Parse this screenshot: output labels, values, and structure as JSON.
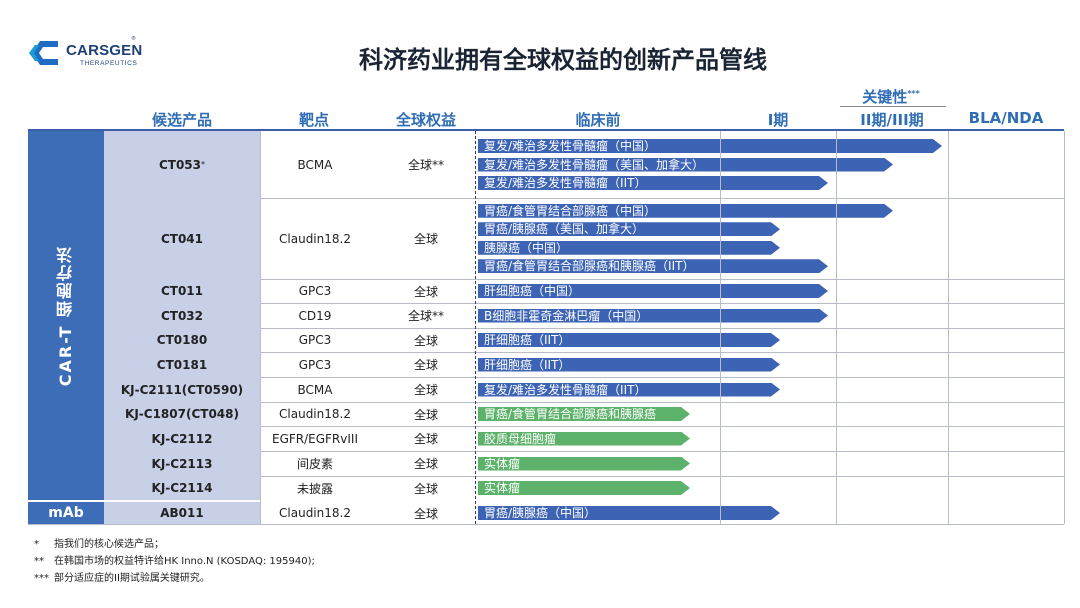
{
  "logo": {
    "name": "CARSGEN",
    "sub": "THERAPEUTICS",
    "reg": "®"
  },
  "title": "科济药业拥有全球权益的创新产品管线",
  "header": {
    "product": "候选产品",
    "target": "靶点",
    "rights": "全球权益",
    "preclinical": "临床前",
    "phase1": "I期",
    "pivotal": "关键性",
    "pivotal_mark": "***",
    "phase23": "II期/III期",
    "bla": "BLA/NDA"
  },
  "groups": {
    "cart": "CAR-T 细胞疗法",
    "mab": "mAb"
  },
  "rows": [
    {
      "product": "CT053",
      "mark": "*",
      "target": "BCMA",
      "rights": "全球**",
      "bars": [
        {
          "label": "复发/难治多发性骨髓瘤（中国）",
          "color": "blue",
          "stage": "phase23-end"
        },
        {
          "label": "复发/难治多发性骨髓瘤（美国、加拿大）",
          "color": "blue",
          "stage": "phase23-mid"
        },
        {
          "label": "复发/难治多发性骨髓瘤（IIT）",
          "color": "blue",
          "stage": "phase1-end"
        }
      ]
    },
    {
      "product": "CT041",
      "mark": "",
      "target": "Claudin18.2",
      "rights": "全球",
      "bars": [
        {
          "label": "胃癌/食管胃结合部腺癌（中国）",
          "color": "blue",
          "stage": "phase23-mid"
        },
        {
          "label": "胃癌/胰腺癌（美国、加拿大）",
          "color": "blue",
          "stage": "phase1-mid"
        },
        {
          "label": "胰腺癌（中国）",
          "color": "blue",
          "stage": "phase1-mid"
        },
        {
          "label": "胃癌/食管胃结合部腺癌和胰腺癌（IIT）",
          "color": "blue",
          "stage": "phase1-end"
        }
      ]
    },
    {
      "product": "CT011",
      "mark": "",
      "target": "GPC3",
      "rights": "全球",
      "bars": [
        {
          "label": "肝细胞癌（中国）",
          "color": "blue",
          "stage": "phase1-end"
        }
      ]
    },
    {
      "product": "CT032",
      "mark": "",
      "target": "CD19",
      "rights": "全球**",
      "bars": [
        {
          "label": "B细胞非霍奇金淋巴瘤（中国）",
          "color": "blue",
          "stage": "phase1-end"
        }
      ]
    },
    {
      "product": "CT0180",
      "mark": "",
      "target": "GPC3",
      "rights": "全球",
      "bars": [
        {
          "label": "肝细胞癌（IIT）",
          "color": "blue",
          "stage": "phase1-mid"
        }
      ]
    },
    {
      "product": "CT0181",
      "mark": "",
      "target": "GPC3",
      "rights": "全球",
      "bars": [
        {
          "label": "肝细胞癌（IIT）",
          "color": "blue",
          "stage": "phase1-mid"
        }
      ]
    },
    {
      "product": "KJ-C2111(CT0590)",
      "mark": "",
      "target": "BCMA",
      "rights": "全球",
      "bars": [
        {
          "label": "复发/难治多发性骨髓瘤（IIT）",
          "color": "blue",
          "stage": "phase1-mid"
        }
      ]
    },
    {
      "product": "KJ-C1807(CT048)",
      "mark": "",
      "target": "Claudin18.2",
      "rights": "全球",
      "bars": [
        {
          "label": "胃癌/食管胃结合部腺癌和胰腺癌",
          "color": "green",
          "stage": "preclinical"
        }
      ]
    },
    {
      "product": "KJ-C2112",
      "mark": "",
      "target": "EGFR/EGFRvIII",
      "rights": "全球",
      "bars": [
        {
          "label": "胶质母细胞瘤",
          "color": "green",
          "stage": "preclinical"
        }
      ]
    },
    {
      "product": "KJ-C2113",
      "mark": "",
      "target": "间皮素",
      "rights": "全球",
      "bars": [
        {
          "label": "实体瘤",
          "color": "green",
          "stage": "preclinical"
        }
      ]
    },
    {
      "product": "KJ-C2114",
      "mark": "",
      "target": "未披露",
      "rights": "全球",
      "bars": [
        {
          "label": "实体瘤",
          "color": "green",
          "stage": "preclinical"
        }
      ]
    },
    {
      "product": "AB011",
      "mark": "",
      "target": "Claudin18.2",
      "rights": "全球",
      "bars": [
        {
          "label": "胃癌/胰腺癌（中国）",
          "color": "blue",
          "stage": "phase1-mid"
        }
      ]
    }
  ],
  "footnotes": [
    {
      "mark": "*",
      "text": "指我们的核心候选产品；"
    },
    {
      "mark": "**",
      "text": "在韩国市场的权益特许给HK Inno.N (KOSDAQ:  195940);"
    },
    {
      "mark": "***",
      "text": "部分适应症的II期试验属关键研究。"
    }
  ],
  "colors": {
    "blue": "#3d63b5",
    "green": "#5cb26a",
    "group": "#3e6db7",
    "header": "#2f6db5"
  }
}
